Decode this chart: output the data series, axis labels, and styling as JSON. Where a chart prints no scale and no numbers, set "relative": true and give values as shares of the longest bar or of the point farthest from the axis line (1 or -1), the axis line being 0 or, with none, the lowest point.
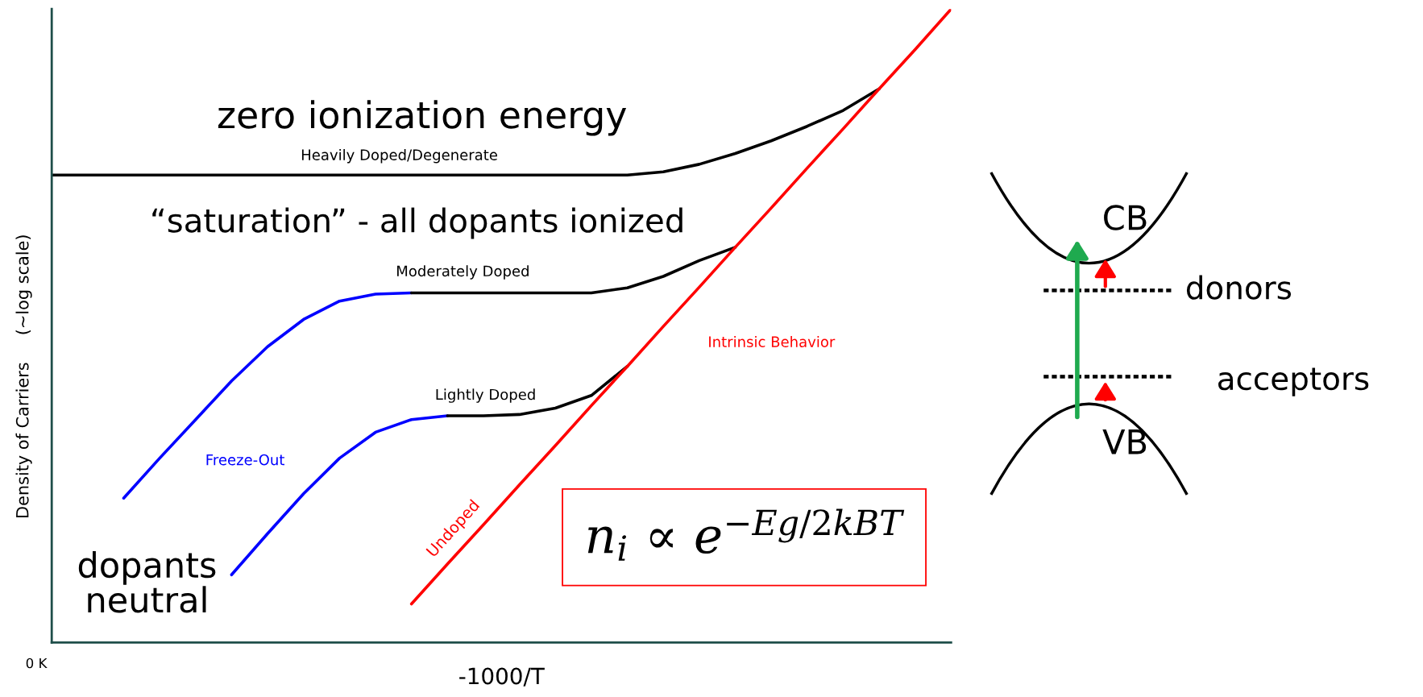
{
  "chart_data": {
    "type": "line",
    "relative": true,
    "xlabel": "-1000/T",
    "ylabel": "Density of Carriers     (~log scale)",
    "categories": [
      null,
      null,
      null,
      null,
      null,
      null,
      null,
      null,
      null,
      null,
      null,
      null,
      null,
      null,
      null,
      null,
      null,
      null,
      null,
      null,
      null,
      null,
      null,
      null,
      null,
      null
    ],
    "series": [
      {
        "color": "#000000",
        "values": [
          0.738,
          0.738,
          0.738,
          0.738,
          0.738,
          0.738,
          0.738,
          0.738,
          0.738,
          0.738,
          0.738,
          0.738,
          0.738,
          0.738,
          0.738,
          0.738,
          0.738,
          0.743,
          0.755,
          0.772,
          0.792,
          0.815,
          0.84,
          0.874,
          null,
          null
        ]
      },
      {
        "color": "#0000ff",
        "values": [
          null,
          null,
          0.228,
          0.291,
          0.352,
          0.413,
          0.467,
          0.51,
          0.539,
          0.55,
          0.552,
          null,
          null,
          null,
          null,
          null,
          null,
          null,
          null,
          null,
          null,
          null,
          null,
          null,
          null,
          null
        ]
      },
      {
        "color": "#000000",
        "values": [
          null,
          null,
          null,
          null,
          null,
          null,
          null,
          null,
          null,
          null,
          0.552,
          0.552,
          0.552,
          0.552,
          0.552,
          0.552,
          0.56,
          0.578,
          0.603,
          0.624,
          null,
          null,
          null,
          null,
          null,
          null
        ]
      },
      {
        "color": "#0000ff",
        "values": [
          null,
          null,
          null,
          null,
          null,
          0.107,
          0.172,
          0.235,
          0.291,
          0.332,
          0.352,
          0.358,
          null,
          null,
          null,
          null,
          null,
          null,
          null,
          null,
          null,
          null,
          null,
          null,
          null,
          null
        ]
      },
      {
        "color": "#000000",
        "values": [
          null,
          null,
          null,
          null,
          null,
          null,
          null,
          null,
          null,
          null,
          null,
          0.358,
          0.358,
          0.36,
          0.37,
          0.39,
          0.436,
          null,
          null,
          null,
          null,
          null,
          null,
          null,
          null,
          null
        ]
      },
      {
        "color": "#ff0000",
        "values": [
          null,
          null,
          null,
          null,
          null,
          null,
          null,
          null,
          null,
          null,
          0.061,
          0.124,
          0.186,
          0.249,
          0.311,
          0.374,
          0.436,
          0.499,
          0.561,
          0.624,
          0.686,
          0.749,
          0.811,
          0.874,
          0.936,
          1.0
        ]
      }
    ],
    "annotations": [
      "zero ionization energy",
      "Heavily Doped/Degenerate",
      "“saturation” - all dopants ionized",
      "Moderately Doped",
      "Lightly Doped",
      "Intrinsic Behavior",
      "Freeze-Out",
      "Undoped",
      "dopants\nneutral",
      "n$_{i}$ ∝ e$^{−Eg/2kBT}$",
      "0 K",
      "CB",
      "donors",
      "acceptors",
      "VB"
    ]
  }
}
